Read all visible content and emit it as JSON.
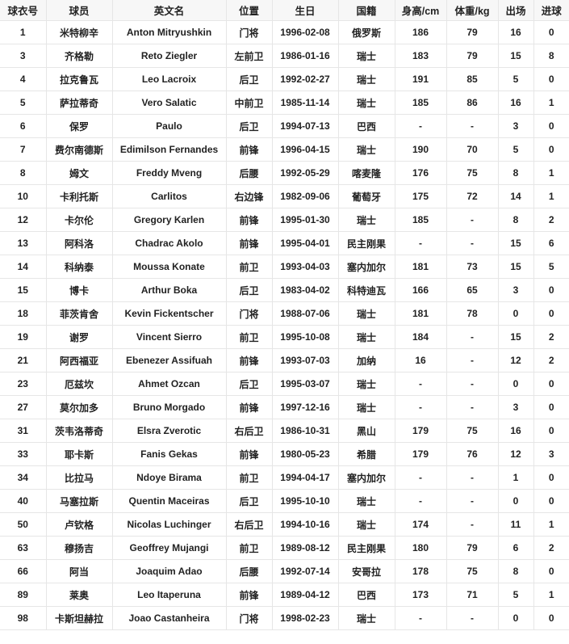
{
  "table": {
    "headers": [
      "球衣号",
      "球员",
      "英文名",
      "位置",
      "生日",
      "国籍",
      "身高/cm",
      "体重/kg",
      "出场",
      "进球"
    ],
    "rows": [
      [
        "1",
        "米特柳辛",
        "Anton Mitryushkin",
        "门将",
        "1996-02-08",
        "俄罗斯",
        "186",
        "79",
        "16",
        "0"
      ],
      [
        "3",
        "齐格勒",
        "Reto Ziegler",
        "左前卫",
        "1986-01-16",
        "瑞士",
        "183",
        "79",
        "15",
        "8"
      ],
      [
        "4",
        "拉克鲁瓦",
        "Leo Lacroix",
        "后卫",
        "1992-02-27",
        "瑞士",
        "191",
        "85",
        "5",
        "0"
      ],
      [
        "5",
        "萨拉蒂奇",
        "Vero Salatic",
        "中前卫",
        "1985-11-14",
        "瑞士",
        "185",
        "86",
        "16",
        "1"
      ],
      [
        "6",
        "保罗",
        "Paulo",
        "后卫",
        "1994-07-13",
        "巴西",
        "-",
        "-",
        "3",
        "0"
      ],
      [
        "7",
        "费尔南德斯",
        "Edimilson Fernandes",
        "前锋",
        "1996-04-15",
        "瑞士",
        "190",
        "70",
        "5",
        "0"
      ],
      [
        "8",
        "姆文",
        "Freddy Mveng",
        "后腰",
        "1992-05-29",
        "喀麦隆",
        "176",
        "75",
        "8",
        "1"
      ],
      [
        "10",
        "卡利托斯",
        "Carlitos",
        "右边锋",
        "1982-09-06",
        "葡萄牙",
        "175",
        "72",
        "14",
        "1"
      ],
      [
        "12",
        "卡尔伦",
        "Gregory Karlen",
        "前锋",
        "1995-01-30",
        "瑞士",
        "185",
        "-",
        "8",
        "2"
      ],
      [
        "13",
        "阿科洛",
        "Chadrac Akolo",
        "前锋",
        "1995-04-01",
        "民主刚果",
        "-",
        "-",
        "15",
        "6"
      ],
      [
        "14",
        "科纳泰",
        "Moussa Konate",
        "前卫",
        "1993-04-03",
        "塞内加尔",
        "181",
        "73",
        "15",
        "5"
      ],
      [
        "15",
        "博卡",
        "Arthur Boka",
        "后卫",
        "1983-04-02",
        "科特迪瓦",
        "166",
        "65",
        "3",
        "0"
      ],
      [
        "18",
        "菲茨肯舍",
        "Kevin Fickentscher",
        "门将",
        "1988-07-06",
        "瑞士",
        "181",
        "78",
        "0",
        "0"
      ],
      [
        "19",
        "谢罗",
        "Vincent Sierro",
        "前卫",
        "1995-10-08",
        "瑞士",
        "184",
        "-",
        "15",
        "2"
      ],
      [
        "21",
        "阿西福亚",
        "Ebenezer Assifuah",
        "前锋",
        "1993-07-03",
        "加纳",
        "16",
        "-",
        "12",
        "2"
      ],
      [
        "23",
        "厄兹坎",
        "Ahmet Ozcan",
        "后卫",
        "1995-03-07",
        "瑞士",
        "-",
        "-",
        "0",
        "0"
      ],
      [
        "27",
        "莫尔加多",
        "Bruno Morgado",
        "前锋",
        "1997-12-16",
        "瑞士",
        "-",
        "-",
        "3",
        "0"
      ],
      [
        "31",
        "茨韦洛蒂奇",
        "Elsra Zverotic",
        "右后卫",
        "1986-10-31",
        "黑山",
        "179",
        "75",
        "16",
        "0"
      ],
      [
        "33",
        "耶卡斯",
        "Fanis Gekas",
        "前锋",
        "1980-05-23",
        "希腊",
        "179",
        "76",
        "12",
        "3"
      ],
      [
        "34",
        "比拉马",
        "Ndoye Birama",
        "前卫",
        "1994-04-17",
        "塞内加尔",
        "-",
        "-",
        "1",
        "0"
      ],
      [
        "40",
        "马塞拉斯",
        "Quentin Maceiras",
        "后卫",
        "1995-10-10",
        "瑞士",
        "-",
        "-",
        "0",
        "0"
      ],
      [
        "50",
        "卢钦格",
        "Nicolas Luchinger",
        "右后卫",
        "1994-10-16",
        "瑞士",
        "174",
        "-",
        "11",
        "1"
      ],
      [
        "63",
        "穆扬吉",
        "Geoffrey Mujangi",
        "前卫",
        "1989-08-12",
        "民主刚果",
        "180",
        "79",
        "6",
        "2"
      ],
      [
        "66",
        "阿当",
        "Joaquim Adao",
        "后腰",
        "1992-07-14",
        "安哥拉",
        "178",
        "75",
        "8",
        "0"
      ],
      [
        "89",
        "莱奥",
        "Leo Itaperuna",
        "前锋",
        "1989-04-12",
        "巴西",
        "173",
        "71",
        "5",
        "1"
      ],
      [
        "98",
        "卡斯坦赫拉",
        "Joao Castanheira",
        "门将",
        "1998-02-23",
        "瑞士",
        "-",
        "-",
        "0",
        "0"
      ]
    ]
  }
}
